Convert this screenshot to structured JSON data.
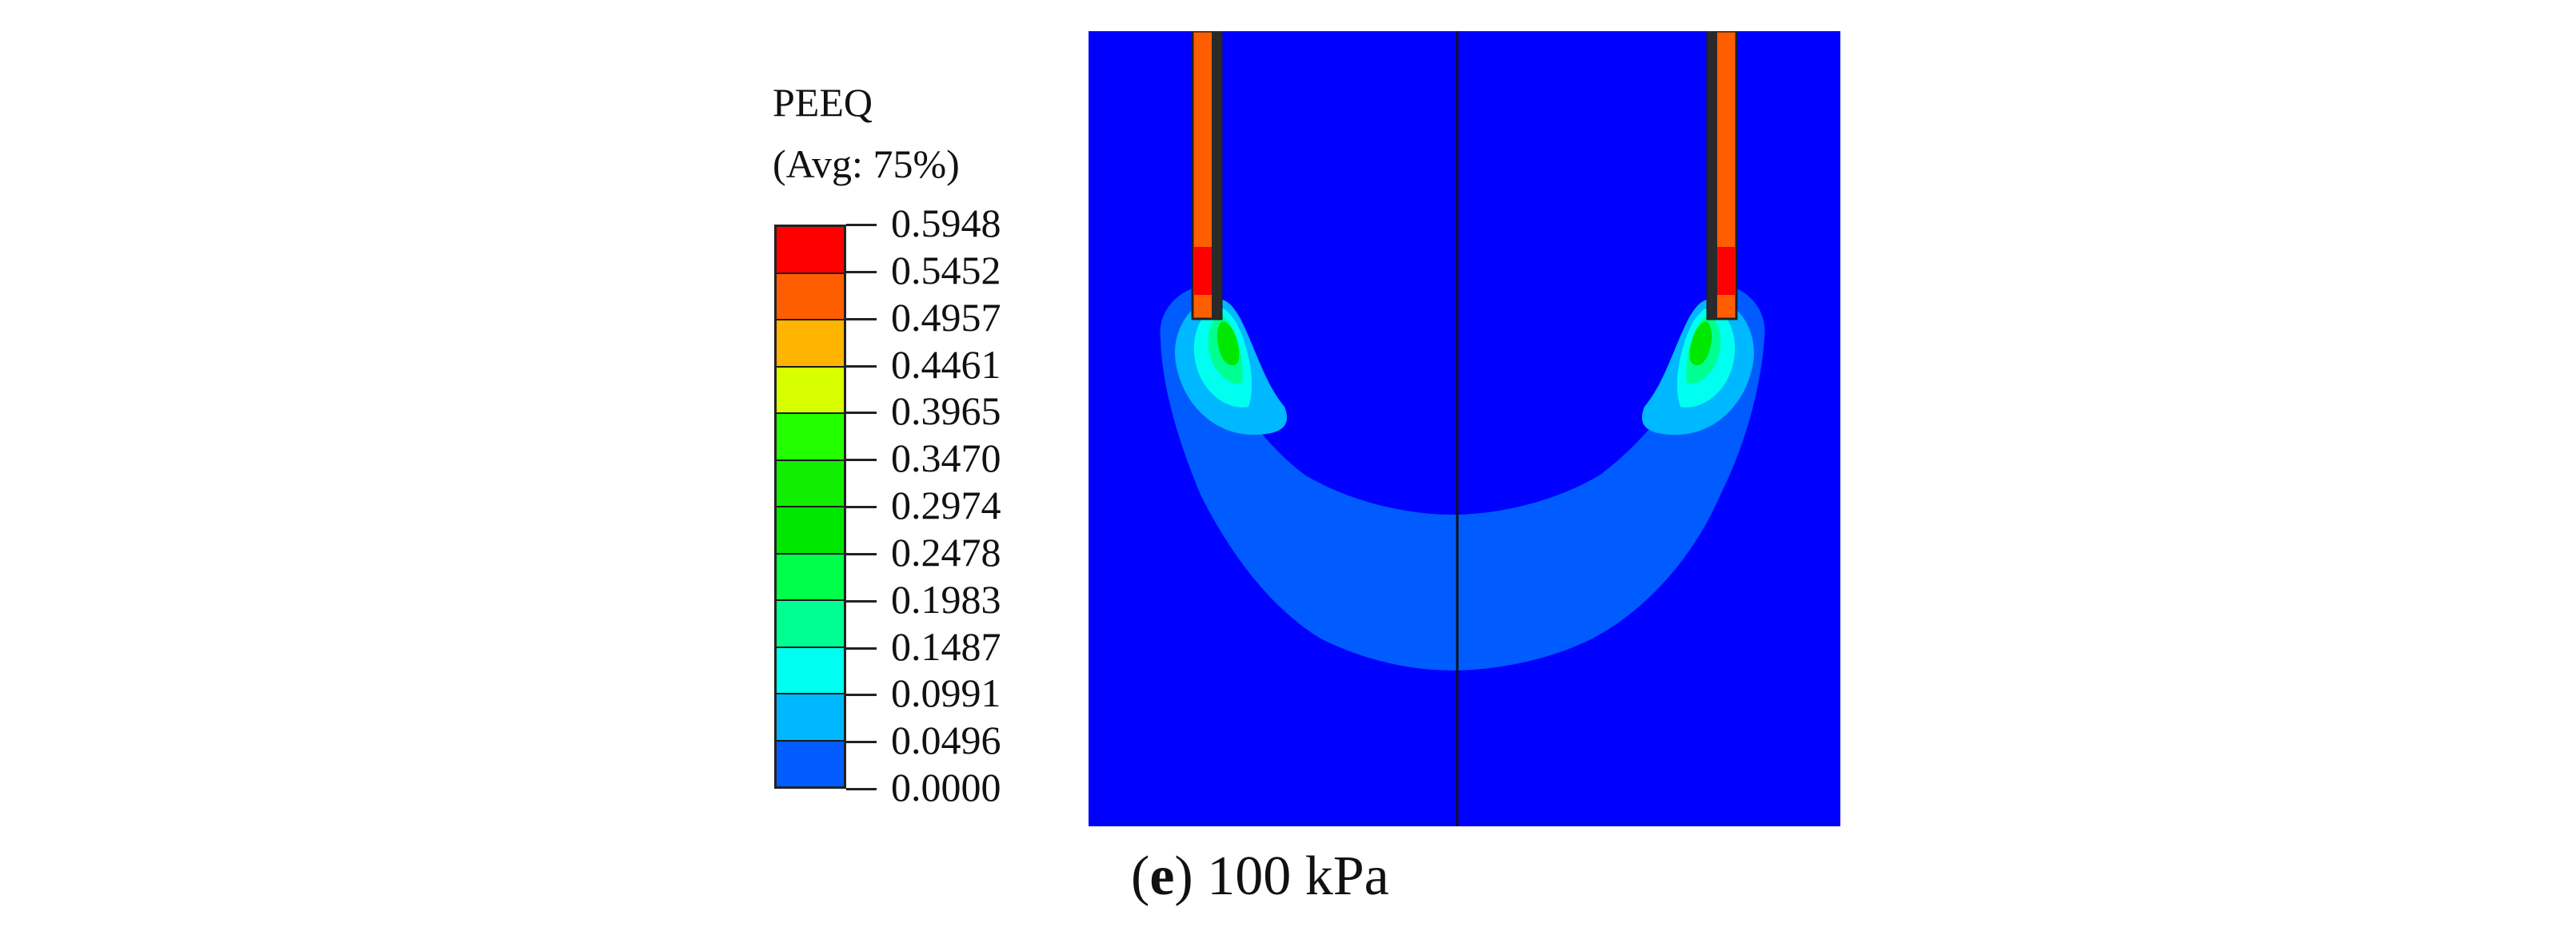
{
  "legend": {
    "variable": "PEEQ",
    "averaging": "(Avg: 75%)",
    "values": [
      "0.5948",
      "0.5452",
      "0.4957",
      "0.4461",
      "0.3965",
      "0.3470",
      "0.2974",
      "0.2478",
      "0.1983",
      "0.1487",
      "0.0991",
      "0.0496",
      "0.0000"
    ],
    "colors": [
      "#ff0000",
      "#ff5e00",
      "#ffb400",
      "#d8ff00",
      "#24ff00",
      "#11ee00",
      "#00e700",
      "#00ff4a",
      "#00ff92",
      "#00fff0",
      "#00b8ff",
      "#005cff",
      "#0000ff"
    ]
  },
  "contour": {
    "background_color": "#0000ff",
    "outer_band_color": "#005cff",
    "pile_colors": [
      "#ff5e00",
      "#ff0000"
    ]
  },
  "caption": {
    "open": "(",
    "letter": "e",
    "close": ")",
    "text": " 100 kPa"
  }
}
